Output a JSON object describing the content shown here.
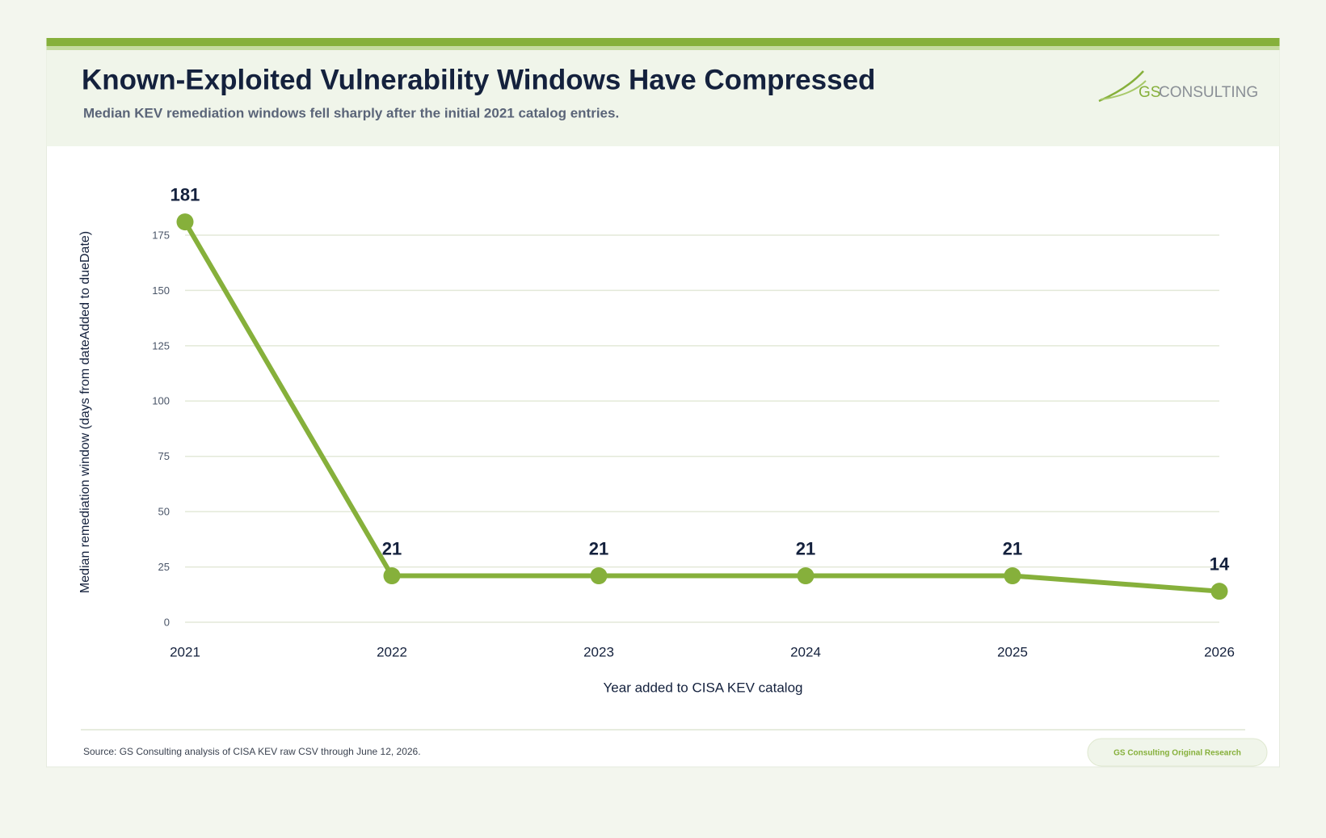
{
  "chart_data": {
    "type": "line",
    "title": "Known-Exploited Vulnerability Windows Have Compressed",
    "subtitle": "Median KEV remediation windows fell sharply after the initial 2021 catalog entries.",
    "x_label": "Year added to CISA KEV catalog",
    "y_label": "Median remediation window (days from dateAdded to dueDate)",
    "categories": [
      "2021",
      "2022",
      "2023",
      "2024",
      "2025",
      "2026"
    ],
    "values": [
      181,
      21,
      21,
      21,
      21,
      14
    ],
    "color": "#86b03b",
    "ylim": [
      0,
      175
    ],
    "yticks": [
      0,
      25,
      50,
      75,
      100,
      125,
      150,
      175
    ],
    "grid": true
  },
  "brand": {
    "gs": "GS",
    "consulting": "CONSULTING"
  },
  "footer": {
    "source": "Source: GS Consulting analysis of CISA KEV raw CSV through June 12, 2026.",
    "badge": "GS Consulting Original Research"
  }
}
